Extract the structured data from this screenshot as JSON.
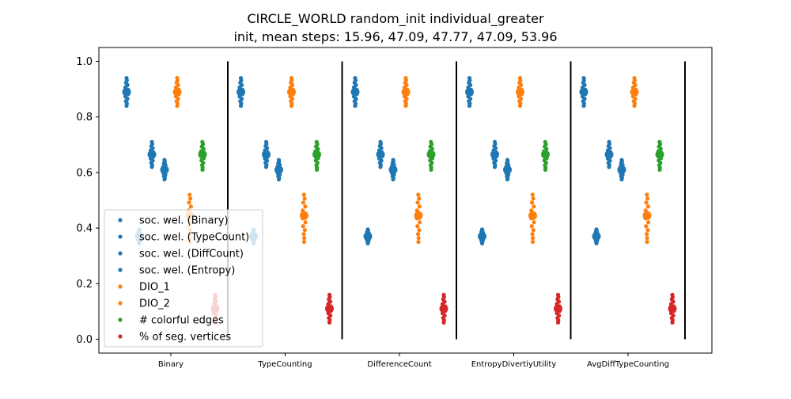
{
  "figure": {
    "title_line1": "CIRCLE_WORLD random_init individual_greater",
    "title_line2": "init, mean steps: 15.96, 47.09, 47.77, 47.09, 53.96"
  },
  "chart_data": {
    "type": "scatter",
    "title": "CIRCLE_WORLD random_init individual_greater\ninit, mean steps: 15.96, 47.09, 47.77, 47.09, 53.96",
    "xlabel": "",
    "ylabel": "",
    "ylim": [
      -0.05,
      1.05
    ],
    "yticks": [
      "0.0",
      "0.2",
      "0.4",
      "0.6",
      "0.8",
      "1.0"
    ],
    "grid": false,
    "legend_position": "lower-left",
    "categories": [
      "Binary",
      "TypeCounting",
      "DifferenceCount",
      "EntropyDivertiyUtility",
      "AvgDiffTypeCounting"
    ],
    "series": [
      {
        "name": "soc. wel. (Binary)",
        "color": "#1f77b4",
        "offset": 0,
        "mean": 0.89,
        "min": 0.84,
        "max": 0.94
      },
      {
        "name": "soc. wel. (TypeCount)",
        "color": "#1f77b4",
        "offset": 2,
        "mean": 0.665,
        "min": 0.62,
        "max": 0.71
      },
      {
        "name": "soc. wel. (DiffCount)",
        "color": "#1f77b4",
        "offset": 3,
        "mean": 0.61,
        "min": 0.575,
        "max": 0.645
      },
      {
        "name": "soc. wel. (Entropy)",
        "color": "#1f77b4",
        "offset": 1,
        "mean": 0.37,
        "min": 0.345,
        "max": 0.395
      },
      {
        "name": "DIO_1",
        "color": "#ff7f0e",
        "offset": 4,
        "mean": 0.89,
        "min": 0.84,
        "max": 0.94
      },
      {
        "name": "DIO_2",
        "color": "#ff7f0e",
        "offset": 5,
        "mean": 0.445,
        "min": 0.35,
        "max": 0.52
      },
      {
        "name": "# colorful edges",
        "color": "#2ca02c",
        "offset": 6,
        "mean": 0.665,
        "min": 0.61,
        "max": 0.71
      },
      {
        "name": "% of seg. vertices",
        "color": "#d62728",
        "offset": 7,
        "mean": 0.11,
        "min": 0.06,
        "max": 0.16
      }
    ]
  }
}
